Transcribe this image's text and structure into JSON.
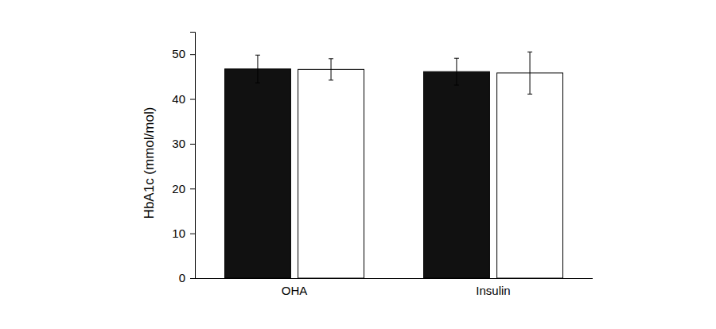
{
  "chart_data": {
    "type": "bar",
    "y_label": "HbA1c (mmol/mol)",
    "categories": [
      "OHA",
      "Insulin"
    ],
    "series": [
      {
        "color": "#111111",
        "values": [
          46.7,
          46.1
        ],
        "errors": [
          3.1,
          3.0
        ]
      },
      {
        "color": "#ffffff",
        "values": [
          46.6,
          45.8
        ],
        "errors": [
          2.4,
          4.7
        ]
      }
    ],
    "ylim": [
      0,
      55
    ],
    "yticks": [
      0,
      10,
      20,
      30,
      40,
      50
    ],
    "grid": false
  }
}
